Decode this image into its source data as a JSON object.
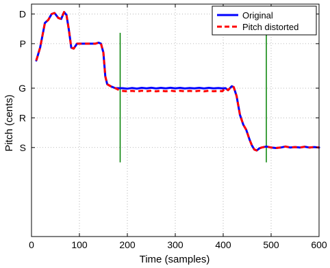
{
  "chart_data": {
    "type": "line",
    "title": "",
    "xlabel": "Time (samples)",
    "ylabel": "Pitch (cents)",
    "xlim": [
      0,
      600
    ],
    "ylim": [
      -900,
      1450
    ],
    "x_ticks": [
      0,
      100,
      200,
      300,
      400,
      500,
      600
    ],
    "y_ticks": [
      {
        "label": "S",
        "value": 0
      },
      {
        "label": "R",
        "value": 300
      },
      {
        "label": "G",
        "value": 600
      },
      {
        "label": "P",
        "value": 1050
      },
      {
        "label": "D",
        "value": 1350
      }
    ],
    "grid": true,
    "legend": {
      "position": "top-right"
    },
    "series": [
      {
        "name": "Original",
        "color": "#0000ff",
        "style": "solid",
        "points": [
          [
            10,
            880
          ],
          [
            18,
            1010
          ],
          [
            28,
            1260
          ],
          [
            35,
            1290
          ],
          [
            42,
            1350
          ],
          [
            48,
            1360
          ],
          [
            56,
            1310
          ],
          [
            62,
            1300
          ],
          [
            68,
            1370
          ],
          [
            73,
            1340
          ],
          [
            78,
            1190
          ],
          [
            83,
            1010
          ],
          [
            88,
            1000
          ],
          [
            95,
            1050
          ],
          [
            105,
            1050
          ],
          [
            115,
            1050
          ],
          [
            125,
            1050
          ],
          [
            133,
            1050
          ],
          [
            140,
            1060
          ],
          [
            145,
            1050
          ],
          [
            150,
            960
          ],
          [
            154,
            720
          ],
          [
            158,
            640
          ],
          [
            165,
            620
          ],
          [
            175,
            600
          ],
          [
            190,
            600
          ],
          [
            200,
            595
          ],
          [
            210,
            602
          ],
          [
            220,
            596
          ],
          [
            230,
            603
          ],
          [
            240,
            598
          ],
          [
            250,
            604
          ],
          [
            260,
            597
          ],
          [
            270,
            603
          ],
          [
            280,
            598
          ],
          [
            290,
            604
          ],
          [
            300,
            598
          ],
          [
            310,
            603
          ],
          [
            320,
            597
          ],
          [
            330,
            602
          ],
          [
            340,
            598
          ],
          [
            350,
            603
          ],
          [
            360,
            597
          ],
          [
            370,
            603
          ],
          [
            380,
            598
          ],
          [
            390,
            602
          ],
          [
            398,
            598
          ],
          [
            405,
            600
          ],
          [
            410,
            580
          ],
          [
            418,
            620
          ],
          [
            422,
            610
          ],
          [
            428,
            520
          ],
          [
            435,
            330
          ],
          [
            442,
            230
          ],
          [
            448,
            180
          ],
          [
            455,
            80
          ],
          [
            460,
            20
          ],
          [
            465,
            -20
          ],
          [
            470,
            -30
          ],
          [
            475,
            -10
          ],
          [
            480,
            0
          ],
          [
            490,
            10
          ],
          [
            500,
            0
          ],
          [
            510,
            -5
          ],
          [
            520,
            0
          ],
          [
            530,
            10
          ],
          [
            540,
            0
          ],
          [
            550,
            5
          ],
          [
            560,
            0
          ],
          [
            570,
            8
          ],
          [
            580,
            0
          ],
          [
            590,
            5
          ],
          [
            600,
            0
          ]
        ]
      },
      {
        "name": "Pitch distorted",
        "color": "#ff0000",
        "style": "dashed",
        "points": [
          [
            10,
            880
          ],
          [
            18,
            1010
          ],
          [
            28,
            1260
          ],
          [
            35,
            1290
          ],
          [
            42,
            1350
          ],
          [
            48,
            1360
          ],
          [
            56,
            1310
          ],
          [
            62,
            1300
          ],
          [
            68,
            1370
          ],
          [
            73,
            1340
          ],
          [
            78,
            1190
          ],
          [
            83,
            1010
          ],
          [
            88,
            1000
          ],
          [
            95,
            1050
          ],
          [
            105,
            1050
          ],
          [
            115,
            1050
          ],
          [
            125,
            1050
          ],
          [
            133,
            1050
          ],
          [
            140,
            1060
          ],
          [
            145,
            1050
          ],
          [
            150,
            960
          ],
          [
            154,
            720
          ],
          [
            158,
            640
          ],
          [
            165,
            620
          ],
          [
            175,
            600
          ],
          [
            185,
            575
          ],
          [
            200,
            568
          ],
          [
            210,
            573
          ],
          [
            220,
            567
          ],
          [
            230,
            574
          ],
          [
            240,
            569
          ],
          [
            250,
            575
          ],
          [
            260,
            568
          ],
          [
            270,
            574
          ],
          [
            280,
            569
          ],
          [
            290,
            575
          ],
          [
            300,
            569
          ],
          [
            310,
            574
          ],
          [
            320,
            568
          ],
          [
            330,
            573
          ],
          [
            340,
            569
          ],
          [
            350,
            574
          ],
          [
            360,
            568
          ],
          [
            370,
            574
          ],
          [
            380,
            569
          ],
          [
            390,
            573
          ],
          [
            398,
            569
          ],
          [
            405,
            600
          ],
          [
            410,
            580
          ],
          [
            418,
            620
          ],
          [
            422,
            610
          ],
          [
            428,
            520
          ],
          [
            435,
            330
          ],
          [
            442,
            230
          ],
          [
            448,
            180
          ],
          [
            455,
            80
          ],
          [
            460,
            20
          ],
          [
            465,
            -20
          ],
          [
            470,
            -30
          ],
          [
            475,
            -10
          ],
          [
            480,
            0
          ],
          [
            490,
            10
          ],
          [
            500,
            0
          ],
          [
            510,
            -5
          ],
          [
            520,
            0
          ],
          [
            530,
            10
          ],
          [
            540,
            0
          ],
          [
            550,
            5
          ],
          [
            560,
            0
          ],
          [
            570,
            8
          ],
          [
            580,
            0
          ],
          [
            590,
            5
          ],
          [
            600,
            0
          ]
        ]
      }
    ],
    "markers": [
      {
        "x": 185,
        "y_from": -150,
        "y_to": 1160,
        "color": "#008000"
      },
      {
        "x": 490,
        "y_from": -150,
        "y_to": 1160,
        "color": "#008000"
      }
    ]
  }
}
